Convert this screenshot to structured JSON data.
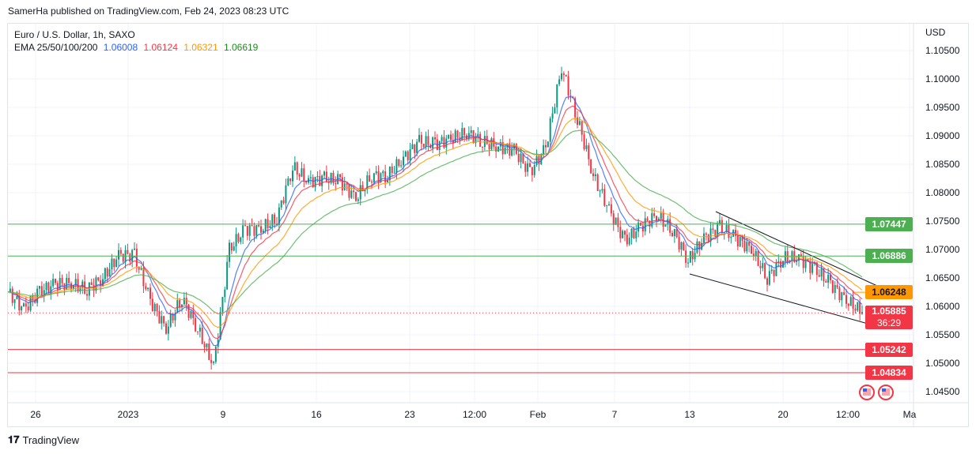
{
  "header": {
    "published": "SamerHa published on TradingView.com, Feb 24, 2023 08:23 UTC"
  },
  "legend": {
    "symbol": "Euro / U.S. Dollar, 1h, SAXO",
    "ema_label": "EMA 25/50/100/200",
    "ema_values": [
      "1.06008",
      "1.06124",
      "1.06321",
      "1.06619"
    ]
  },
  "footer": {
    "brand": "TradingView"
  },
  "chart_data": {
    "type": "candlestick",
    "currency": "USD",
    "y_ticks": [
      "1.10500",
      "1.10000",
      "1.09500",
      "1.09000",
      "1.08500",
      "1.08000",
      "1.07500",
      "1.07000",
      "1.06500",
      "1.06000",
      "1.05500",
      "1.05000",
      "1.04500"
    ],
    "ylim": [
      1.0435,
      1.1085
    ],
    "x_ticks": [
      "26",
      "2023",
      "9",
      "16",
      "23",
      "12:00",
      "Feb",
      "7",
      "13",
      "20",
      "12:00",
      "Ma"
    ],
    "closes": [
      1.0625,
      1.0595,
      1.0625,
      1.064,
      1.064,
      1.063,
      1.065,
      1.069,
      1.069,
      1.061,
      1.056,
      1.0615,
      1.056,
      1.0495,
      1.07,
      1.0736,
      1.0736,
      1.0755,
      1.0845,
      1.082,
      1.0825,
      1.082,
      1.079,
      1.083,
      1.083,
      1.086,
      1.089,
      1.0885,
      1.0895,
      1.0905,
      1.089,
      1.088,
      1.0875,
      1.0835,
      1.088,
      1.102,
      1.093,
      1.083,
      1.077,
      1.0715,
      1.074,
      1.076,
      1.0735,
      1.068,
      1.072,
      1.074,
      1.072,
      1.07,
      1.065,
      1.0685,
      1.0685,
      1.0665,
      1.064,
      1.061,
      1.059
    ],
    "ema_colors": [
      "#2962ff",
      "#f23645",
      "#ff9800",
      "#4caf50"
    ],
    "levels": [
      {
        "price": "1.07447",
        "color": "#4caf50"
      },
      {
        "price": "1.06886",
        "color": "#4caf50"
      },
      {
        "price": "1.06248",
        "color": "#ff9800"
      },
      {
        "price": "1.05242",
        "color": "#f23645"
      },
      {
        "price": "1.04834",
        "color": "#f23645"
      }
    ],
    "last_price": "1.05885",
    "countdown": "36:29",
    "up_color": "#089981",
    "down_color": "#f23645"
  }
}
